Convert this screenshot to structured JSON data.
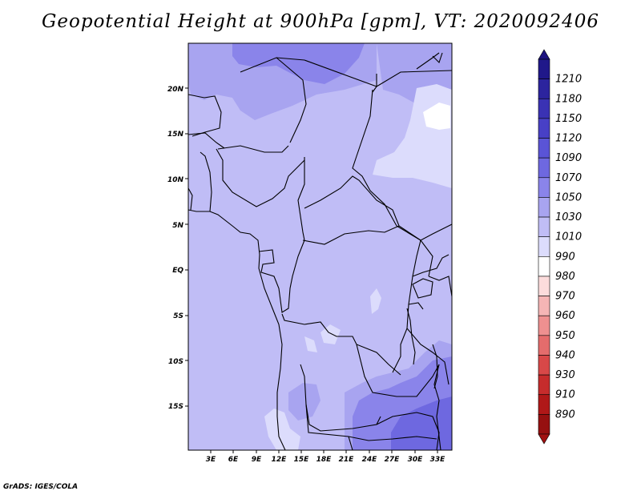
{
  "title": "Geopotential Height at 900hPa [gpm], VT: 2020092406",
  "credit": "GrADS: IGES/COLA",
  "map": {
    "y_ticks": [
      "20N",
      "15N",
      "10N",
      "5N",
      "EQ",
      "5S",
      "10S",
      "15S"
    ],
    "x_ticks": [
      "3E",
      "6E",
      "9E",
      "12E",
      "15E",
      "18E",
      "21E",
      "24E",
      "27E",
      "30E",
      "33E"
    ]
  },
  "colorbar": {
    "labels": [
      "1210",
      "1180",
      "1150",
      "1120",
      "1090",
      "1070",
      "1050",
      "1030",
      "1010",
      "990",
      "980",
      "970",
      "960",
      "950",
      "940",
      "930",
      "910",
      "890"
    ],
    "colors": [
      "#20188a",
      "#2c249e",
      "#3a32b4",
      "#4840c6",
      "#5a54d6",
      "#6e68e0",
      "#8a84ea",
      "#a8a4f0",
      "#c0bdf6",
      "#dcdcfc",
      "#ffffff",
      "#fcdcdc",
      "#f5b5b5",
      "#ee9090",
      "#e46c6c",
      "#d84848",
      "#c62c2c",
      "#b01818",
      "#961010"
    ],
    "top_color": "#1e1480",
    "bottom_color": "#a01010"
  }
}
